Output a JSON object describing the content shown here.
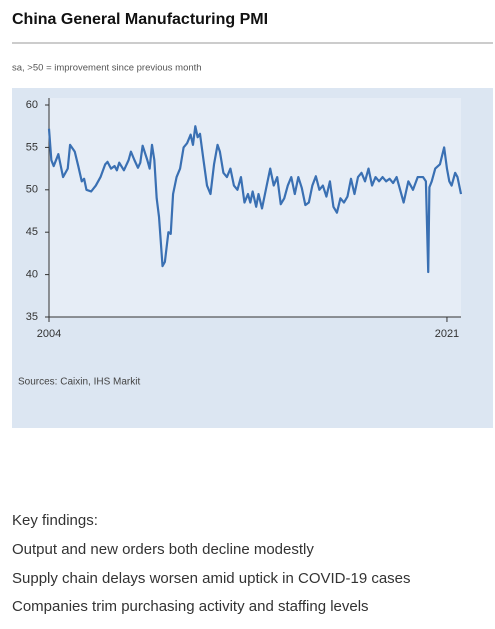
{
  "chart_data": {
    "type": "line",
    "title": "China General Manufacturing PMI",
    "subtitle": "sa, >50 = improvement since previous month",
    "source": "Sources: Caixin, IHS Markit",
    "x": [
      2004.0,
      2004.1,
      2004.2,
      2004.4,
      2004.6,
      2004.8,
      2004.9,
      2005.1,
      2005.25,
      2005.4,
      2005.5,
      2005.6,
      2005.8,
      2006.0,
      2006.2,
      2006.4,
      2006.5,
      2006.65,
      2006.8,
      2006.9,
      2007.0,
      2007.2,
      2007.4,
      2007.5,
      2007.65,
      2007.8,
      2007.9,
      2008.0,
      2008.2,
      2008.3,
      2008.4,
      2008.5,
      2008.6,
      2008.7,
      2008.85,
      2008.95,
      2009.1,
      2009.2,
      2009.3,
      2009.45,
      2009.6,
      2009.75,
      2009.9,
      2010.05,
      2010.15,
      2010.25,
      2010.35,
      2010.45,
      2010.6,
      2010.75,
      2010.9,
      2011.05,
      2011.2,
      2011.3,
      2011.45,
      2011.6,
      2011.75,
      2011.9,
      2012.05,
      2012.2,
      2012.35,
      2012.5,
      2012.6,
      2012.7,
      2012.85,
      2012.95,
      2013.1,
      2013.3,
      2013.45,
      2013.6,
      2013.75,
      2013.9,
      2014.05,
      2014.2,
      2014.35,
      2014.5,
      2014.65,
      2014.8,
      2014.95,
      2015.1,
      2015.25,
      2015.4,
      2015.55,
      2015.7,
      2015.85,
      2016.0,
      2016.15,
      2016.3,
      2016.45,
      2016.6,
      2016.75,
      2016.9,
      2017.05,
      2017.2,
      2017.35,
      2017.5,
      2017.65,
      2017.8,
      2017.95,
      2018.1,
      2018.25,
      2018.4,
      2018.55,
      2018.7,
      2018.85,
      2019.0,
      2019.15,
      2019.35,
      2019.55,
      2019.75,
      2019.98,
      2020.1,
      2020.2,
      2020.25,
      2020.35,
      2020.5,
      2020.7,
      2020.88,
      2021.0,
      2021.1,
      2021.2,
      2021.35,
      2021.45,
      2021.6
    ],
    "series": [
      {
        "name": "PMI",
        "color": "#3a70b3",
        "values": [
          57.2,
          53.5,
          52.8,
          54.2,
          51.5,
          52.5,
          55.3,
          54.5,
          52.8,
          51.0,
          51.3,
          50.0,
          49.8,
          50.5,
          51.5,
          53.0,
          53.3,
          52.5,
          52.8,
          52.3,
          53.2,
          52.3,
          53.5,
          54.5,
          53.5,
          52.6,
          53.2,
          55.2,
          53.5,
          52.5,
          55.3,
          53.5,
          49.0,
          46.8,
          41.0,
          41.5,
          45.0,
          44.8,
          49.5,
          51.5,
          52.5,
          55.0,
          55.5,
          56.5,
          55.3,
          57.5,
          56.2,
          56.6,
          53.5,
          50.5,
          49.5,
          53.0,
          55.3,
          54.5,
          52.0,
          51.5,
          52.5,
          50.5,
          50.0,
          51.5,
          48.5,
          49.5,
          48.5,
          49.8,
          48.0,
          49.5,
          47.8,
          50.5,
          52.5,
          50.5,
          51.5,
          48.3,
          49.0,
          50.5,
          51.5,
          49.5,
          51.5,
          50.2,
          48.2,
          48.5,
          50.5,
          51.6,
          50.0,
          50.5,
          49.2,
          51.0,
          48.0,
          47.3,
          49.0,
          48.5,
          49.2,
          51.3,
          49.5,
          51.5,
          52.0,
          51.0,
          52.5,
          50.5,
          51.5,
          51.0,
          51.5,
          51.0,
          51.3,
          50.8,
          51.5,
          50.0,
          48.5,
          51.0,
          50.0,
          51.5,
          51.5,
          51.0,
          40.3,
          50.3,
          51.0,
          52.5,
          53.0,
          55.0,
          52.5,
          51.0,
          50.5,
          52.0,
          51.5,
          49.5
        ]
      }
    ],
    "xlim": [
      2004.0,
      2021.6
    ],
    "xticks": [
      2004,
      2021
    ],
    "ylim": [
      35,
      60
    ],
    "yticks": [
      35,
      40,
      45,
      50,
      55,
      60
    ],
    "grid": false
  },
  "key_findings": {
    "heading": "Key findings:",
    "items": [
      "Output and new orders both decline modestly",
      "Supply chain delays worsen amid uptick in COVID-19 cases",
      "Companies trim purchasing activity and staffing levels"
    ]
  }
}
